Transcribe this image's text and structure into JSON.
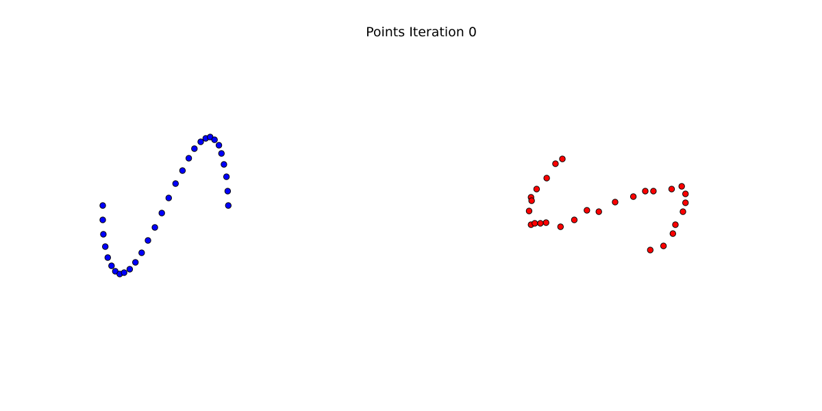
{
  "chart_data": {
    "type": "scatter",
    "title": "Points Iteration 0",
    "xlabel": "",
    "ylabel": "",
    "axes_visible": false,
    "grid": false,
    "xlim": [
      0,
      12
    ],
    "ylim": [
      -3,
      3
    ],
    "series": [
      {
        "color": "#0000ff",
        "points": [
          [
            0.0,
            0.0
          ],
          [
            0.0,
            -0.21
          ],
          [
            0.01,
            -0.42
          ],
          [
            0.04,
            -0.6
          ],
          [
            0.08,
            -0.76
          ],
          [
            0.14,
            -0.88
          ],
          [
            0.2,
            -0.96
          ],
          [
            0.27,
            -1.0
          ],
          [
            0.34,
            -0.98
          ],
          [
            0.43,
            -0.93
          ],
          [
            0.52,
            -0.83
          ],
          [
            0.62,
            -0.69
          ],
          [
            0.72,
            -0.51
          ],
          [
            0.83,
            -0.32
          ],
          [
            0.94,
            -0.11
          ],
          [
            1.05,
            0.11
          ],
          [
            1.16,
            0.32
          ],
          [
            1.27,
            0.51
          ],
          [
            1.37,
            0.69
          ],
          [
            1.46,
            0.83
          ],
          [
            1.56,
            0.93
          ],
          [
            1.64,
            0.98
          ],
          [
            1.71,
            1.0
          ],
          [
            1.78,
            0.96
          ],
          [
            1.85,
            0.88
          ],
          [
            1.89,
            0.76
          ],
          [
            1.93,
            0.6
          ],
          [
            1.97,
            0.42
          ],
          [
            1.99,
            0.21
          ],
          [
            2.0,
            0.0
          ]
        ]
      },
      {
        "color": "#ff0000",
        "points": [
          [
            7.32,
            0.68
          ],
          [
            7.21,
            0.61
          ],
          [
            7.07,
            0.4
          ],
          [
            6.91,
            0.24
          ],
          [
            6.82,
            0.12
          ],
          [
            6.83,
            0.07
          ],
          [
            6.79,
            -0.08
          ],
          [
            6.82,
            -0.28
          ],
          [
            6.88,
            -0.26
          ],
          [
            6.97,
            -0.26
          ],
          [
            7.06,
            -0.25
          ],
          [
            7.29,
            -0.31
          ],
          [
            7.51,
            -0.21
          ],
          [
            7.71,
            -0.07
          ],
          [
            7.9,
            -0.09
          ],
          [
            8.16,
            0.05
          ],
          [
            8.45,
            0.13
          ],
          [
            8.64,
            0.21
          ],
          [
            8.77,
            0.21
          ],
          [
            9.06,
            0.24
          ],
          [
            9.22,
            0.28
          ],
          [
            9.28,
            0.17
          ],
          [
            9.28,
            0.04
          ],
          [
            9.24,
            -0.09
          ],
          [
            9.12,
            -0.28
          ],
          [
            9.08,
            -0.41
          ],
          [
            8.93,
            -0.59
          ],
          [
            8.72,
            -0.65
          ]
        ]
      }
    ]
  }
}
